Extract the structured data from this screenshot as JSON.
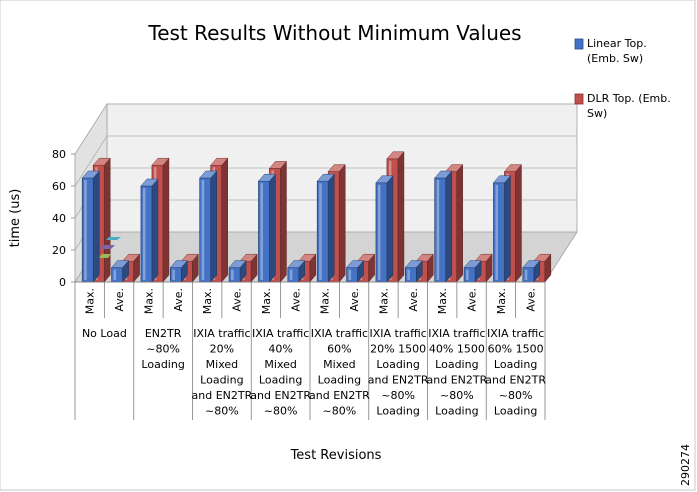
{
  "chart_data": {
    "type": "bar",
    "title": "Test Results Without Minimum Values",
    "xlabel": "Test Revisions",
    "ylabel": "time (us)",
    "ylim": [
      0,
      80
    ],
    "yticks": [
      "0",
      "20",
      "40",
      "60",
      "80"
    ],
    "sub_categories": [
      "Max.",
      "Ave."
    ],
    "groups": [
      {
        "lines": [
          "No Load"
        ]
      },
      {
        "lines": [
          "EN2TR",
          "~80%",
          "Loading"
        ]
      },
      {
        "lines": [
          "IXIA traffic",
          "20%",
          "Mixed",
          "Loading",
          "and EN2TR",
          "~80%"
        ]
      },
      {
        "lines": [
          "IXIA traffic",
          "40%",
          "Mixed",
          "Loading",
          "and EN2TR",
          "~80%"
        ]
      },
      {
        "lines": [
          "IXIA traffic",
          "60%",
          "Mixed",
          "Loading",
          "and EN2TR",
          "~80%"
        ]
      },
      {
        "lines": [
          "IXIA traffic",
          "20% 1500",
          "Loading",
          "and EN2TR",
          "~80%",
          "Loading"
        ]
      },
      {
        "lines": [
          "IXIA traffic",
          "40% 1500",
          "Loading",
          "and EN2TR",
          "~80%",
          "Loading"
        ]
      },
      {
        "lines": [
          "IXIA traffic",
          "60% 1500",
          "Loading",
          "and EN2TR",
          "~80%",
          "Loading"
        ]
      }
    ],
    "series": [
      {
        "name": "Linear Top. (Emb. Sw)",
        "name_lines": [
          "Linear Top.",
          "(Emb. Sw)"
        ],
        "color": "#4472c4",
        "values": [
          [
            65,
            9
          ],
          [
            60,
            9
          ],
          [
            65,
            9
          ],
          [
            63,
            9
          ],
          [
            63,
            9
          ],
          [
            62,
            9
          ],
          [
            65,
            9
          ],
          [
            62,
            9
          ]
        ]
      },
      {
        "name": "DLR Top. (Emb. Sw)",
        "name_lines": [
          "DLR Top. (Emb.",
          "Sw)"
        ],
        "color": "#c0504d",
        "values": [
          [
            73,
            13
          ],
          [
            73,
            13
          ],
          [
            73,
            13
          ],
          [
            71,
            13
          ],
          [
            69,
            13
          ],
          [
            77,
            13
          ],
          [
            69,
            13
          ],
          [
            69,
            13
          ]
        ]
      }
    ],
    "grid": true,
    "legend_position": "top-right"
  },
  "figure_id": "290274"
}
